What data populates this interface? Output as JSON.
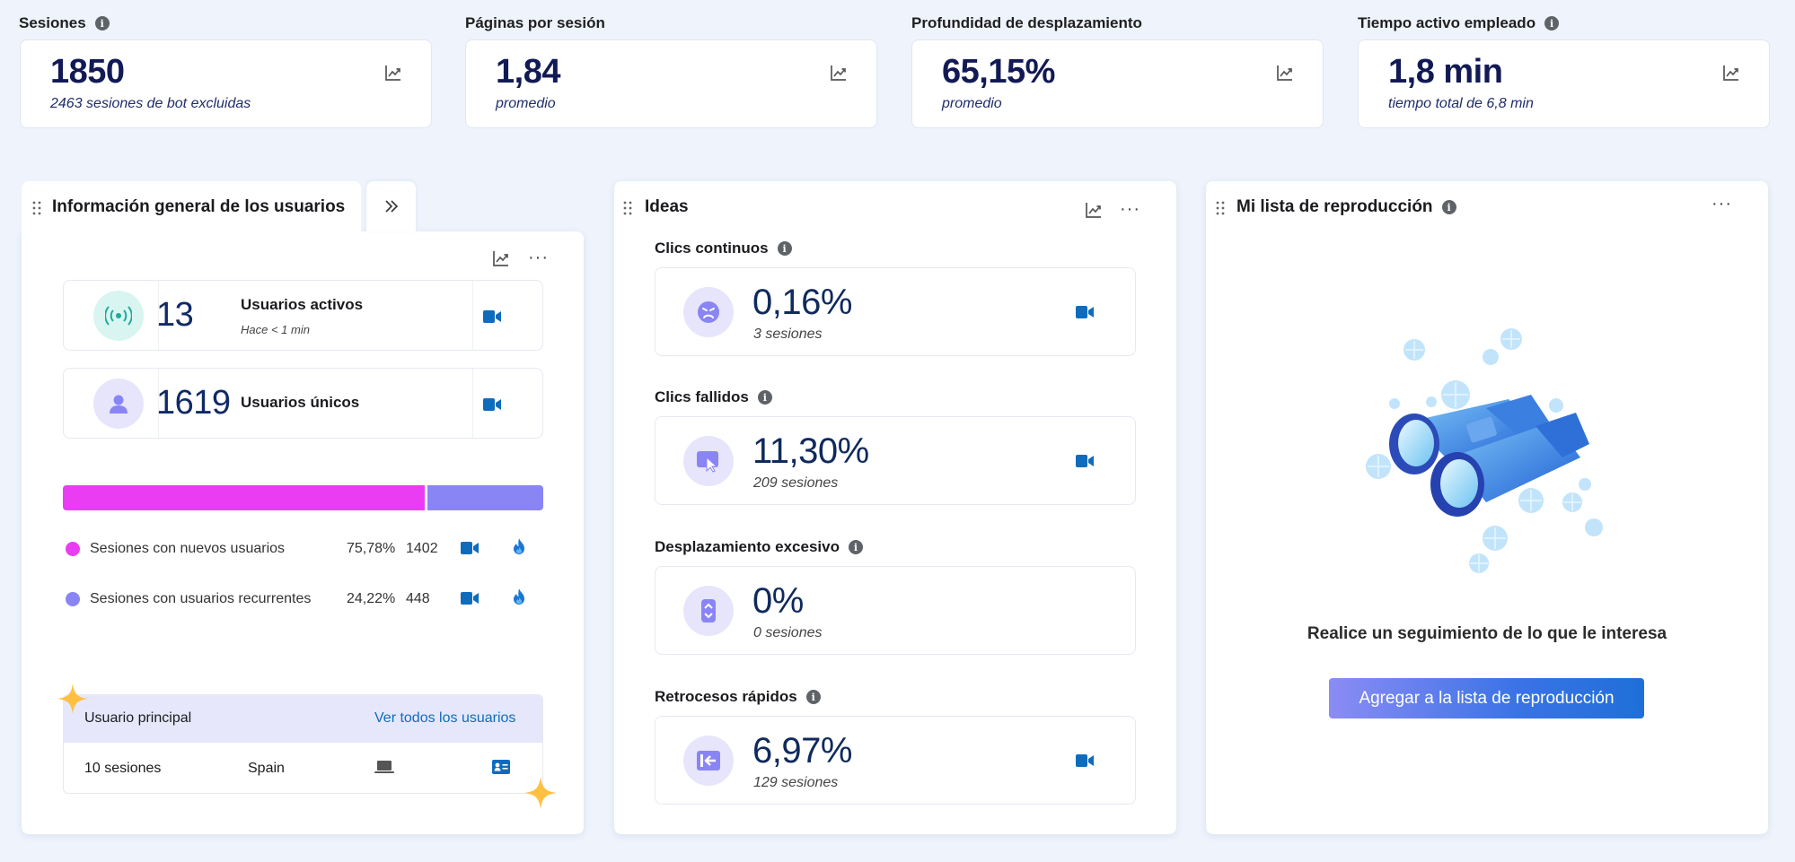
{
  "kpis": [
    {
      "label": "Sesiones",
      "value": "1850",
      "sub": "2463 sesiones de bot excluidas",
      "info": true
    },
    {
      "label": "Páginas por sesión",
      "value": "1,84",
      "sub": "promedio",
      "info": false
    },
    {
      "label": "Profundidad de desplazamiento",
      "value": "65,15%",
      "sub": "promedio",
      "info": false
    },
    {
      "label": "Tiempo activo empleado",
      "value": "1,8 min",
      "sub": "tiempo total de 6,8 min",
      "info": true
    }
  ],
  "users_panel": {
    "title": "Información general de los usuarios",
    "more": "···",
    "active": {
      "count": "13",
      "label": "Usuarios activos",
      "sub": "Hace < 1 min"
    },
    "unique": {
      "count": "1619",
      "label": "Usuarios únicos"
    },
    "split": {
      "new_fraction": 0.7578,
      "new_color": "#ea3cf2",
      "returning_color": "#8a85f5"
    },
    "legend": [
      {
        "label": "Sesiones con nuevos usuarios",
        "pct": "75,78%",
        "count": "1402"
      },
      {
        "label": "Sesiones con usuarios recurrentes",
        "pct": "24,22%",
        "count": "448"
      }
    ],
    "top_user": {
      "label": "Usuario principal",
      "link": "Ver todos los usuarios",
      "sessions": "10 sesiones",
      "country": "Spain"
    }
  },
  "ideas_panel": {
    "title": "Ideas",
    "more": "···",
    "metrics": [
      {
        "label": "Clics continuos",
        "value": "0,16%",
        "sub": "3 sesiones",
        "icon": "angry-face-icon"
      },
      {
        "label": "Clics fallidos",
        "value": "11,30%",
        "sub": "209 sesiones",
        "icon": "cursor-click-icon"
      },
      {
        "label": "Desplazamiento excesivo",
        "value": "0%",
        "sub": "0 sesiones",
        "icon": "scroll-icon"
      },
      {
        "label": "Retrocesos rápidos",
        "value": "6,97%",
        "sub": "129 sesiones",
        "icon": "back-arrow-icon"
      }
    ]
  },
  "playlist_panel": {
    "title": "Mi lista de reproducción",
    "more": "···",
    "empty_text": "Realice un seguimiento de lo que le interesa",
    "button": "Agregar a la lista de reproducción"
  },
  "colors": {
    "accent": "#0f6cbd",
    "navy": "#121a55"
  }
}
